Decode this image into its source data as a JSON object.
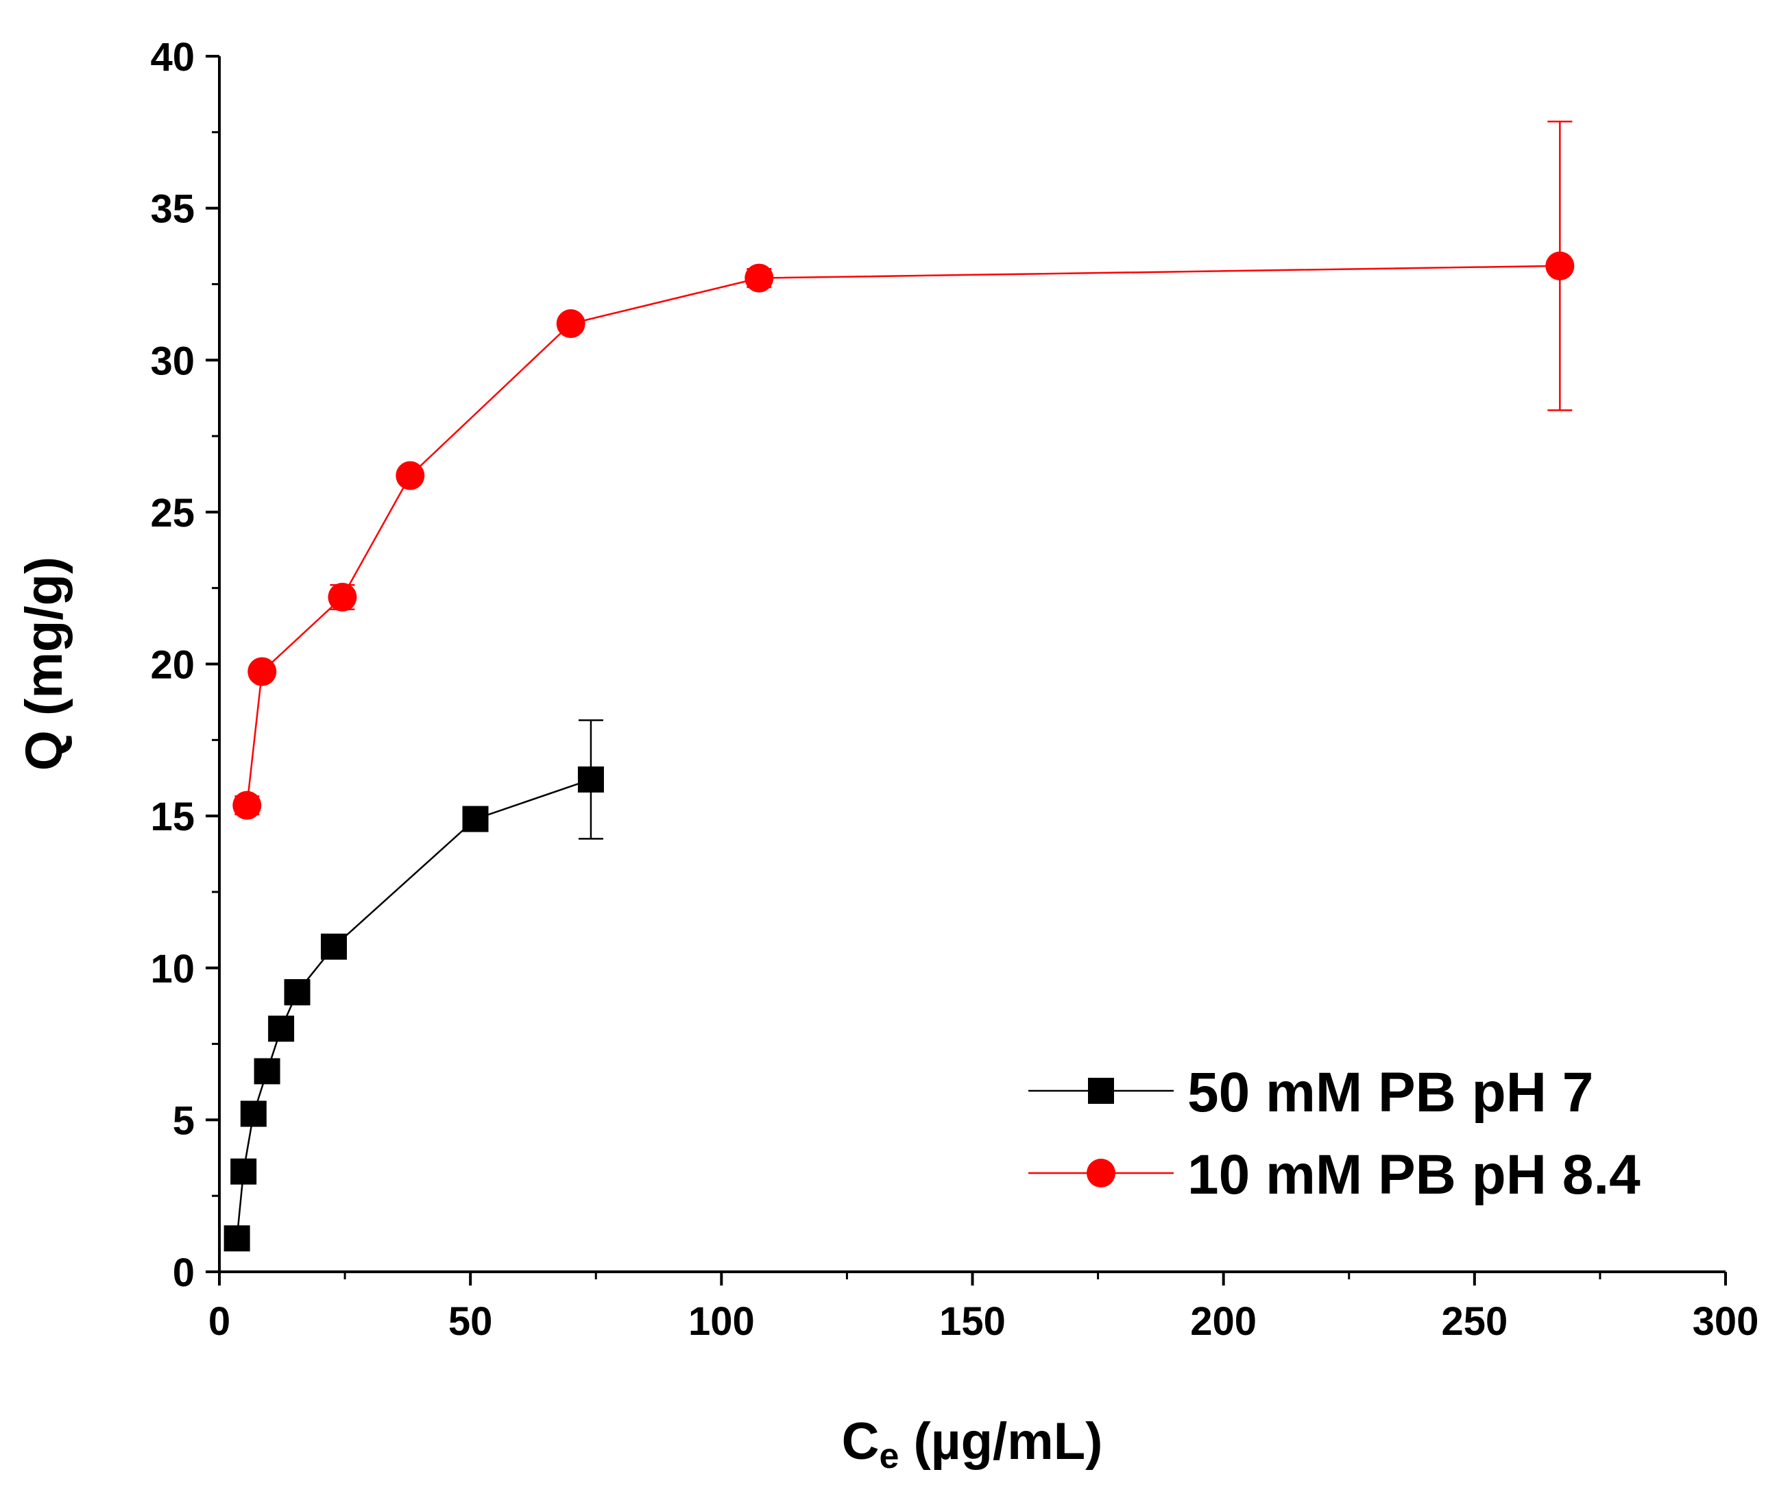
{
  "chart_data": {
    "type": "line",
    "title": "",
    "xlabel": {
      "main": "C",
      "sub": "e",
      "rest": " (µg/mL)"
    },
    "ylabel": "Q (mg/g)",
    "xlim": [
      0,
      300
    ],
    "ylim": [
      0,
      40
    ],
    "xticks": [
      "0",
      "50",
      "100",
      "150",
      "200",
      "250",
      "300"
    ],
    "yticks": [
      "0",
      "5",
      "10",
      "15",
      "20",
      "25",
      "30",
      "35",
      "40"
    ],
    "grid": false,
    "legend_position": "bottom-right",
    "series": [
      {
        "name": "50 mM PB pH 7",
        "color": "#000000",
        "marker": "square",
        "x": [
          3.5,
          4.8,
          6.8,
          9.5,
          12.3,
          15.5,
          22.8,
          51.0,
          74.0
        ],
        "y": [
          1.1,
          3.3,
          5.2,
          6.6,
          8.0,
          9.2,
          10.7,
          14.9,
          16.2
        ],
        "yerr": [
          0.1,
          0.1,
          0.1,
          0.2,
          0.3,
          0.4,
          0.1,
          0.1,
          1.95
        ]
      },
      {
        "name": "10 mM PB pH 8.4",
        "color": "#ff0000",
        "marker": "circle",
        "x": [
          5.5,
          8.5,
          24.5,
          38.0,
          70.0,
          107.5,
          267.0
        ],
        "y": [
          15.35,
          19.75,
          22.2,
          26.2,
          31.2,
          32.7,
          33.1
        ],
        "yerr": [
          0.3,
          0.2,
          0.4,
          0.2,
          0.2,
          0.3,
          4.75
        ]
      }
    ]
  }
}
